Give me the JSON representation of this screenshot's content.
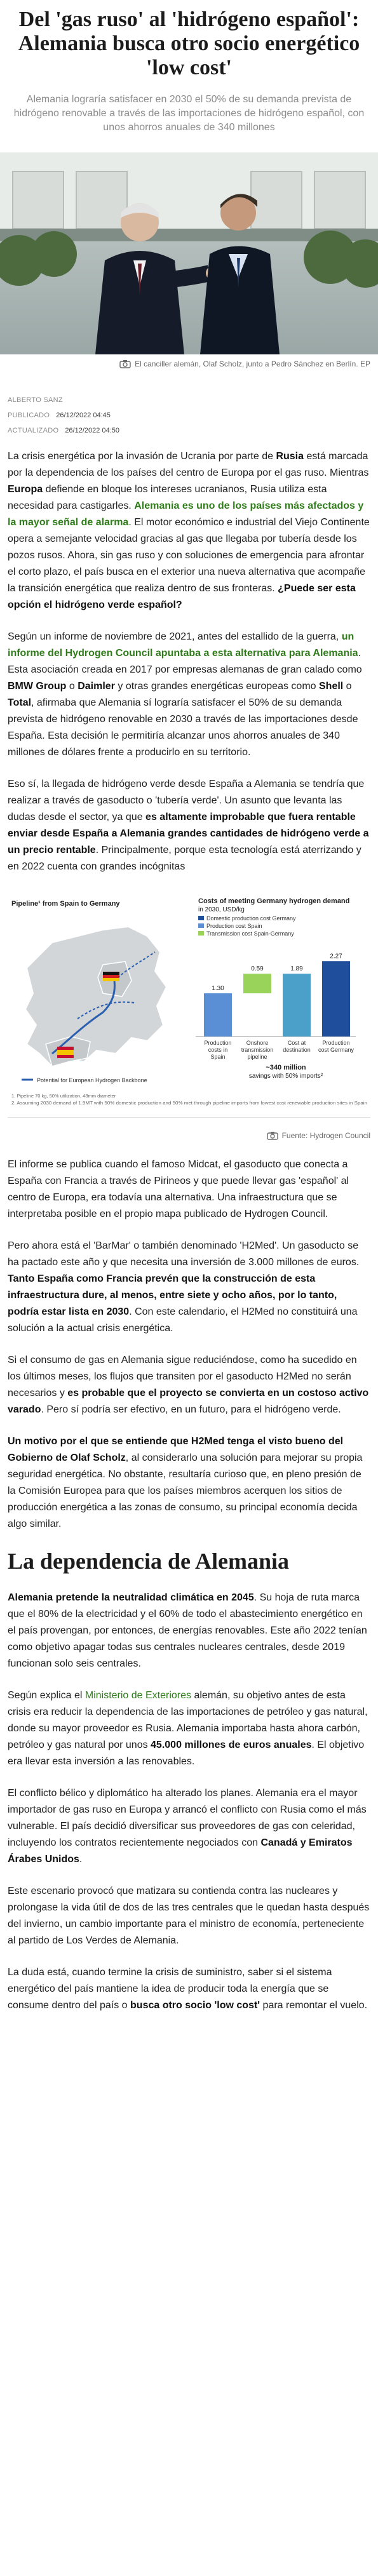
{
  "article": {
    "title": "Del 'gas ruso' al 'hidrógeno español': Alemania busca otro socio energético 'low cost'",
    "subtitle": "Alemania lograría satisfacer en 2030 el 50% de su demanda prevista de hidrógeno renovable a través de las importaciones de hidrógeno español, con unos ahorros anuales de 340 millones",
    "photo_caption": "El canciller alemán, Olaf Scholz, junto a Pedro Sánchez en Berlín. EP",
    "author": "ALBERTO SANZ",
    "published_label": "PUBLICADO",
    "published_value": "26/12/2022 04:45",
    "updated_label": "ACTUALIZADO",
    "updated_value": "26/12/2022 04:50"
  },
  "paragraphs": {
    "p1": {
      "a": "La crisis energética por la invasión de Ucrania por parte de ",
      "b": "Rusia",
      "c": " está marcada por la dependencia de los países del centro de Europa por el gas ruso. Mientras ",
      "d": "Europa",
      "e": " defiende en bloque los intereses ucranianos, Rusia utiliza esta necesidad para castigarles. ",
      "f": "Alemania es uno de los países más afectados y la mayor señal de alarma",
      "g": ". El motor económico e industrial del Viejo Continente opera a semejante velocidad gracias al gas que llegaba por tubería desde los pozos rusos. Ahora, sin gas ruso y con soluciones de emergencia para afrontar el corto plazo, el país busca en el exterior una nueva alternativa que acompañe la transición energética que realiza dentro de sus fronteras. ",
      "h": "¿Puede ser esta opción el hidrógeno verde español?"
    },
    "p2": {
      "a": "Según un informe de noviembre de 2021, antes del estallido de la guerra, ",
      "b": "un informe del Hydrogen Council apuntaba a esta alternativa para Alemania",
      "c": ". Esta asociación creada en 2017 por empresas alemanas de gran calado como ",
      "d": "BMW Group",
      "e": " o ",
      "f": "Daimler",
      "g": " y otras grandes energéticas europeas como ",
      "h": "Shell",
      "i": " o ",
      "j": "Total",
      "k": ", afirmaba que Alemania sí lograría satisfacer el 50% de su demanda prevista de hidrógeno renovable en 2030 a través de las importaciones desde España. Esta decisión le permitiría alcanzar unos ahorros anuales de 340 millones de dólares frente a producirlo en su territorio."
    },
    "p3": {
      "a": "Eso sí, la llegada de hidrógeno verde desde España a Alemania se tendría que realizar a través de gasoducto o 'tubería verde'. Un asunto que levanta las dudas desde el sector, ya que ",
      "b": "es altamente improbable que fuera rentable enviar desde España a Alemania grandes cantidades de hidrógeno verde a un precio rentable",
      "c": ". Principalmente, porque esta tecnología está aterrizando y en 2022 cuenta con grandes incógnitas"
    },
    "p4": "El informe se publica cuando el famoso Midcat, el gasoducto que conecta a España con Francia a través de Pirineos y que puede llevar gas 'español' al centro de Europa, era todavía una alternativa. Una infraestructura que se interpretaba posible en el propio mapa publicado de Hydrogen Council.",
    "p5": {
      "a": "Pero ahora está el 'BarMar' o también denominado 'H2Med'. Un gasoducto se ha pactado este año y que necesita una inversión de 3.000 millones de euros. ",
      "b": "Tanto España como Francia prevén que la construcción de esta infraestructura dure, al menos, entre siete y ocho años, por lo tanto, podría estar lista en 2030",
      "c": ". Con este calendario, el H2Med no constituirá una solución a la actual crisis energética."
    },
    "p6": {
      "a": "Si el consumo de gas en Alemania sigue reduciéndose, como ha sucedido en los últimos meses, los flujos que transiten por el gasoducto H2Med no serán necesarios y ",
      "b": "es probable que el proyecto se convierta en un costoso activo varado",
      "c": ". Pero sí podría ser efectivo, en un futuro, para el hidrógeno verde."
    },
    "p7": {
      "a": "Un motivo por el que se entiende que H2Med tenga el visto bueno del Gobierno de Olaf Scholz",
      "b": ", al considerarlo una solución para mejorar su propia seguridad energética. No obstante, resultaría curioso que, en pleno presión de la Comisión Europea para que los países miembros acerquen los sitios de producción energética a las zonas de consumo, su principal economía decida algo similar."
    },
    "section_title": "La dependencia de Alemania",
    "p8": {
      "a": "Alemania pretende la neutralidad climática en 2045",
      "b": ". Su hoja de ruta marca que el 80% de la electricidad y el 60% de todo el abastecimiento energético en el país provengan, por entonces, de energías renovables. Este año 2022 tenían como objetivo apagar todas sus centrales nucleares centrales, desde 2019 funcionan solo seis centrales."
    },
    "p9": {
      "a": "Según explica el ",
      "b": "Ministerio de Exteriores",
      "c": " alemán, su objetivo antes de esta crisis era reducir la dependencia de las importaciones de petróleo y gas natural, donde su mayor proveedor es Rusia. Alemania importaba hasta ahora carbón, petróleo y gas natural por unos ",
      "d": "45.000 millones de euros anuales",
      "e": ". El objetivo era llevar esta inversión a las renovables."
    },
    "p10": {
      "a": "El conflicto bélico y diplomático ha alterado los planes. Alemania era el mayor importador de gas ruso en Europa y arrancó el conflicto con Rusia como el más vulnerable. El país decidió diversificar sus proveedores de gas con celeridad, incluyendo los contratos recientemente negociados con ",
      "b": "Canadá y Emiratos Árabes Unidos",
      "c": "."
    },
    "p11": "Este escenario provocó que matizara su contienda contra las nucleares y prolongase la vida útil de dos de las tres centrales que le quedan hasta después del invierno, un cambio importante para el ministro de economía, perteneciente al partido de Los Verdes de Alemania.",
    "p12": {
      "a": "La duda está, cuando termine la crisis de suministro, saber si el sistema energético del país mantiene la idea de producir toda la energía que se consume dentro del país o ",
      "b": "busca otro socio 'low cost'",
      "c": " para remontar el vuelo."
    }
  },
  "infographic": {
    "map_title": "Pipeline¹ from Spain to Germany",
    "map_legend": "Potential for European Hydrogen Backbone",
    "chart_title_1": "Costs of meeting Germany hydrogen demand",
    "chart_title_2": "in 2030, USD/kg",
    "legend": [
      "Domestic production cost Germany",
      "Production cost Spain",
      "Transmission cost Spain-Germany"
    ],
    "footnote_1": "1. Pipeline 70 kg, 50% utilization, 48mm diameter",
    "footnote_2": "2. Assuming 2030 demand of 1.9MT with 50% domestic production and 50% met through pipeline imports from lowest cost renewable production sites in Spain",
    "savings_1": "~340 million",
    "savings_2": "savings with 50% imports²",
    "source": "Fuente: Hydrogen Council"
  },
  "chart_data": {
    "type": "bar",
    "title": "Costs of meeting Germany hydrogen demand in 2030, USD/kg",
    "categories": [
      "Production costs in Spain",
      "Onshore transmission pipeline",
      "Cost at destination",
      "Production cost Germany"
    ],
    "category_lines": [
      [
        "Production",
        "costs in",
        "Spain"
      ],
      [
        "Onshore",
        "transmission",
        "pipeline"
      ],
      [
        "Cost at",
        "destination"
      ],
      [
        "Production",
        "cost Germany"
      ]
    ],
    "values": [
      1.3,
      0.59,
      1.89,
      2.27
    ],
    "value_labels": [
      "1.30",
      "0.59",
      "1.89",
      "2.27"
    ],
    "colors": [
      "#5a8fd6",
      "#9ad35a",
      "#4aa0c8",
      "#1f4e9c"
    ],
    "ylim": [
      0,
      2.6
    ],
    "annotation": "~340 million savings with 50% imports²"
  },
  "colors": {
    "accent_green": "#2f7d1a",
    "text": "#222222",
    "muted": "#8d8d8d"
  }
}
